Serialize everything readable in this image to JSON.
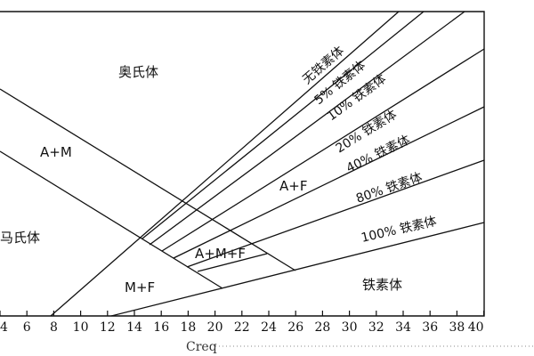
{
  "diagram": {
    "regions": {
      "austenite": "奥氏体",
      "a_m": "A+M",
      "martensite": "马氏体",
      "a_f": "A+F",
      "a_m_f": "A+M+F",
      "m_f": "M+F",
      "ferrite": "铁素体"
    },
    "ferrite_lines": [
      "无铁素体",
      "5% 铁素体",
      "10% 铁素体",
      "20% 铁素体",
      "40% 铁素体",
      "80% 铁素体",
      "100% 铁素体"
    ],
    "x_axis": {
      "title": "Creq",
      "ticks": [
        "4",
        "6",
        "8",
        "10",
        "12",
        "14",
        "16",
        "18",
        "20",
        "22",
        "24",
        "26",
        "28",
        "30",
        "32",
        "34",
        "36",
        "38",
        "40"
      ]
    }
  }
}
